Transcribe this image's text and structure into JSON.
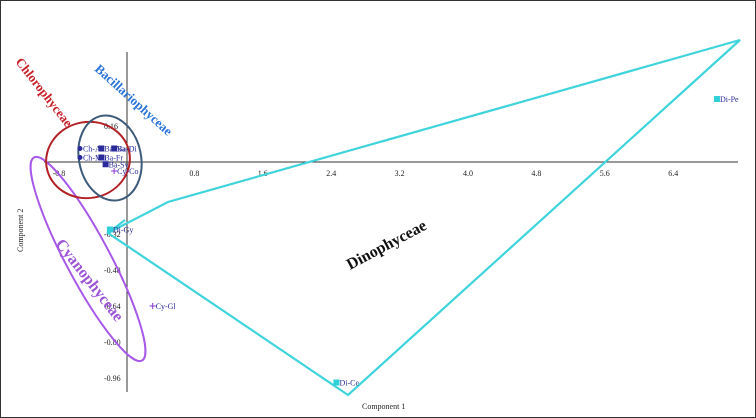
{
  "chart_data": {
    "type": "scatter",
    "xlabel": "Component 1",
    "ylabel": "Component 2",
    "xlim": [
      -1.0,
      7.2
    ],
    "ylim": [
      -1.04,
      0.34
    ],
    "x_ticks": [
      "-0.8",
      "0.8",
      "1.6",
      "2.4",
      "3.2",
      "4.0",
      "4.8",
      "5.6",
      "6.4"
    ],
    "y_ticks": [
      "0.16",
      "-0.32",
      "-0.48",
      "-0.64",
      "-0.80",
      "-0.96"
    ],
    "points": [
      {
        "label": "Di-Pe",
        "x": 6.9,
        "y": 0.28,
        "marker": "square",
        "color": "#2fd0d8"
      },
      {
        "label": "Di-Gy",
        "x": -0.2,
        "y": -0.3,
        "marker": "square",
        "color": "#2fd0d8"
      },
      {
        "label": "Di-Ce",
        "x": 2.45,
        "y": -0.98,
        "marker": "square",
        "color": "#2fd0d8"
      },
      {
        "label": "Cy-Gl",
        "x": 0.3,
        "y": -0.64,
        "marker": "plus",
        "color": "#9b55d6"
      },
      {
        "label": "Cy-Co",
        "x": -0.15,
        "y": -0.04,
        "marker": "plus",
        "color": "#9b55d6"
      },
      {
        "label": "Ch-Ar",
        "x": -0.55,
        "y": 0.06,
        "marker": "dot",
        "color": "#2a2a9a"
      },
      {
        "label": "Ch-Mo",
        "x": -0.55,
        "y": 0.02,
        "marker": "dot",
        "color": "#2a2a9a"
      },
      {
        "label": "Ba-Di",
        "x": -0.15,
        "y": 0.06,
        "marker": "square",
        "color": "#2a2a9a"
      },
      {
        "label": "Ba-Na",
        "x": -0.3,
        "y": 0.06,
        "marker": "square",
        "color": "#2a2a9a"
      },
      {
        "label": "Ba-Fr",
        "x": -0.3,
        "y": 0.02,
        "marker": "square",
        "color": "#2a2a9a"
      },
      {
        "label": "Ba-Sy",
        "x": -0.25,
        "y": -0.01,
        "marker": "square",
        "color": "#2a2a9a"
      }
    ],
    "groups": [
      {
        "name": "Chlorophyceae",
        "color": "#c8202a"
      },
      {
        "name": "Bacillariophyceae",
        "color": "#2a73d8"
      },
      {
        "name": "Cyanophyceae",
        "color": "#9b55d6"
      },
      {
        "name": "Dinophyceae",
        "color": "#111111"
      }
    ],
    "colors": {
      "dinophyceae_hull": "#3fd3db",
      "chlorophyceae_ellipse": "#b21f24",
      "bacillariophyceae_ellipse": "#3c5a7a",
      "cyanophyceae_ellipse": "#a858e8",
      "axis": "#333333"
    }
  }
}
